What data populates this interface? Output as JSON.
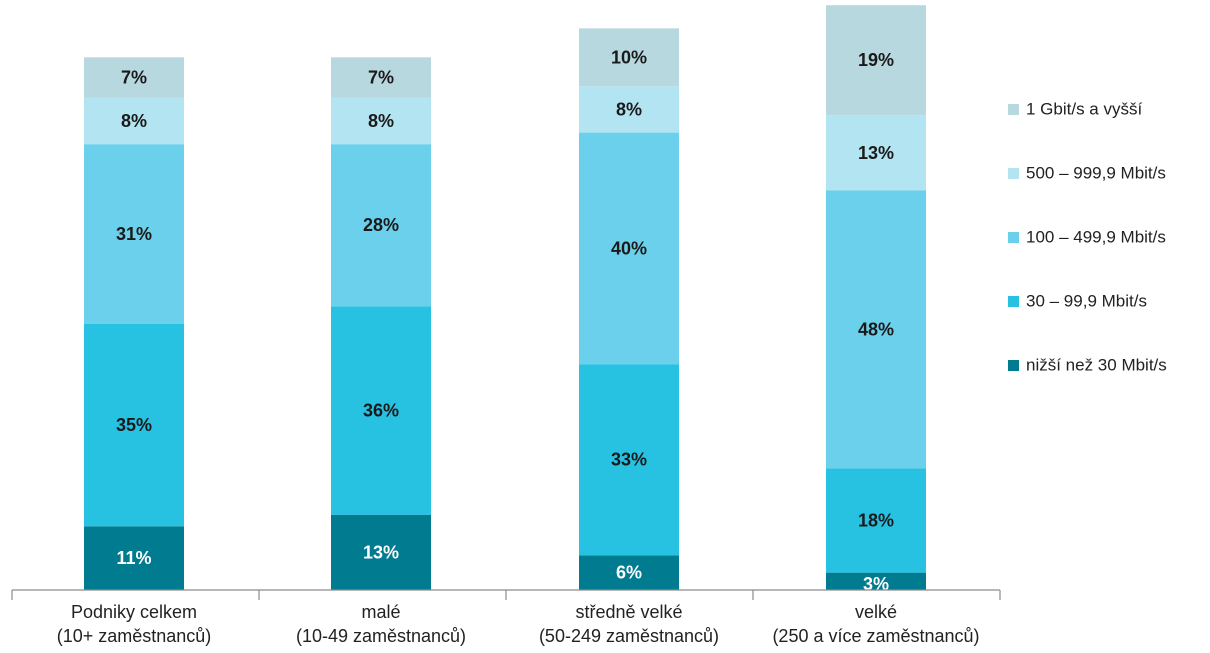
{
  "chart_data": {
    "type": "bar",
    "stacked": true,
    "percent_stacked": true,
    "categories": [
      [
        "Podniky celkem",
        "(10+ zaměstnanců)"
      ],
      [
        "malé",
        "(10-49 zaměstnanců)"
      ],
      [
        "středně velké",
        "(50-249 zaměstnanců)"
      ],
      [
        "velké",
        "(250 a více zaměstnanců)"
      ]
    ],
    "series": [
      {
        "name": "nižší než 30 Mbit/s",
        "color": "#007b8f",
        "label_color": "#ffffff",
        "values": [
          11,
          13,
          6,
          3
        ]
      },
      {
        "name": "30 – 99,9 Mbit/s",
        "color": "#27c1e2",
        "label_color": "#1a1a1a",
        "values": [
          35,
          36,
          33,
          18
        ]
      },
      {
        "name": "100 – 499,9 Mbit/s",
        "color": "#6bd0eb",
        "label_color": "#1a1a1a",
        "values": [
          31,
          28,
          40,
          48
        ]
      },
      {
        "name": "500 – 999,9 Mbit/s",
        "color": "#b3e4f1",
        "label_color": "#1a1a1a",
        "values": [
          8,
          8,
          8,
          13
        ]
      },
      {
        "name": "1 Gbit/s a vyšší",
        "color": "#b8d8e0",
        "label_color": "#1a1a1a",
        "values": [
          7,
          7,
          10,
          19
        ]
      }
    ],
    "value_suffix": "%",
    "legend_position": "right",
    "grid": false
  }
}
